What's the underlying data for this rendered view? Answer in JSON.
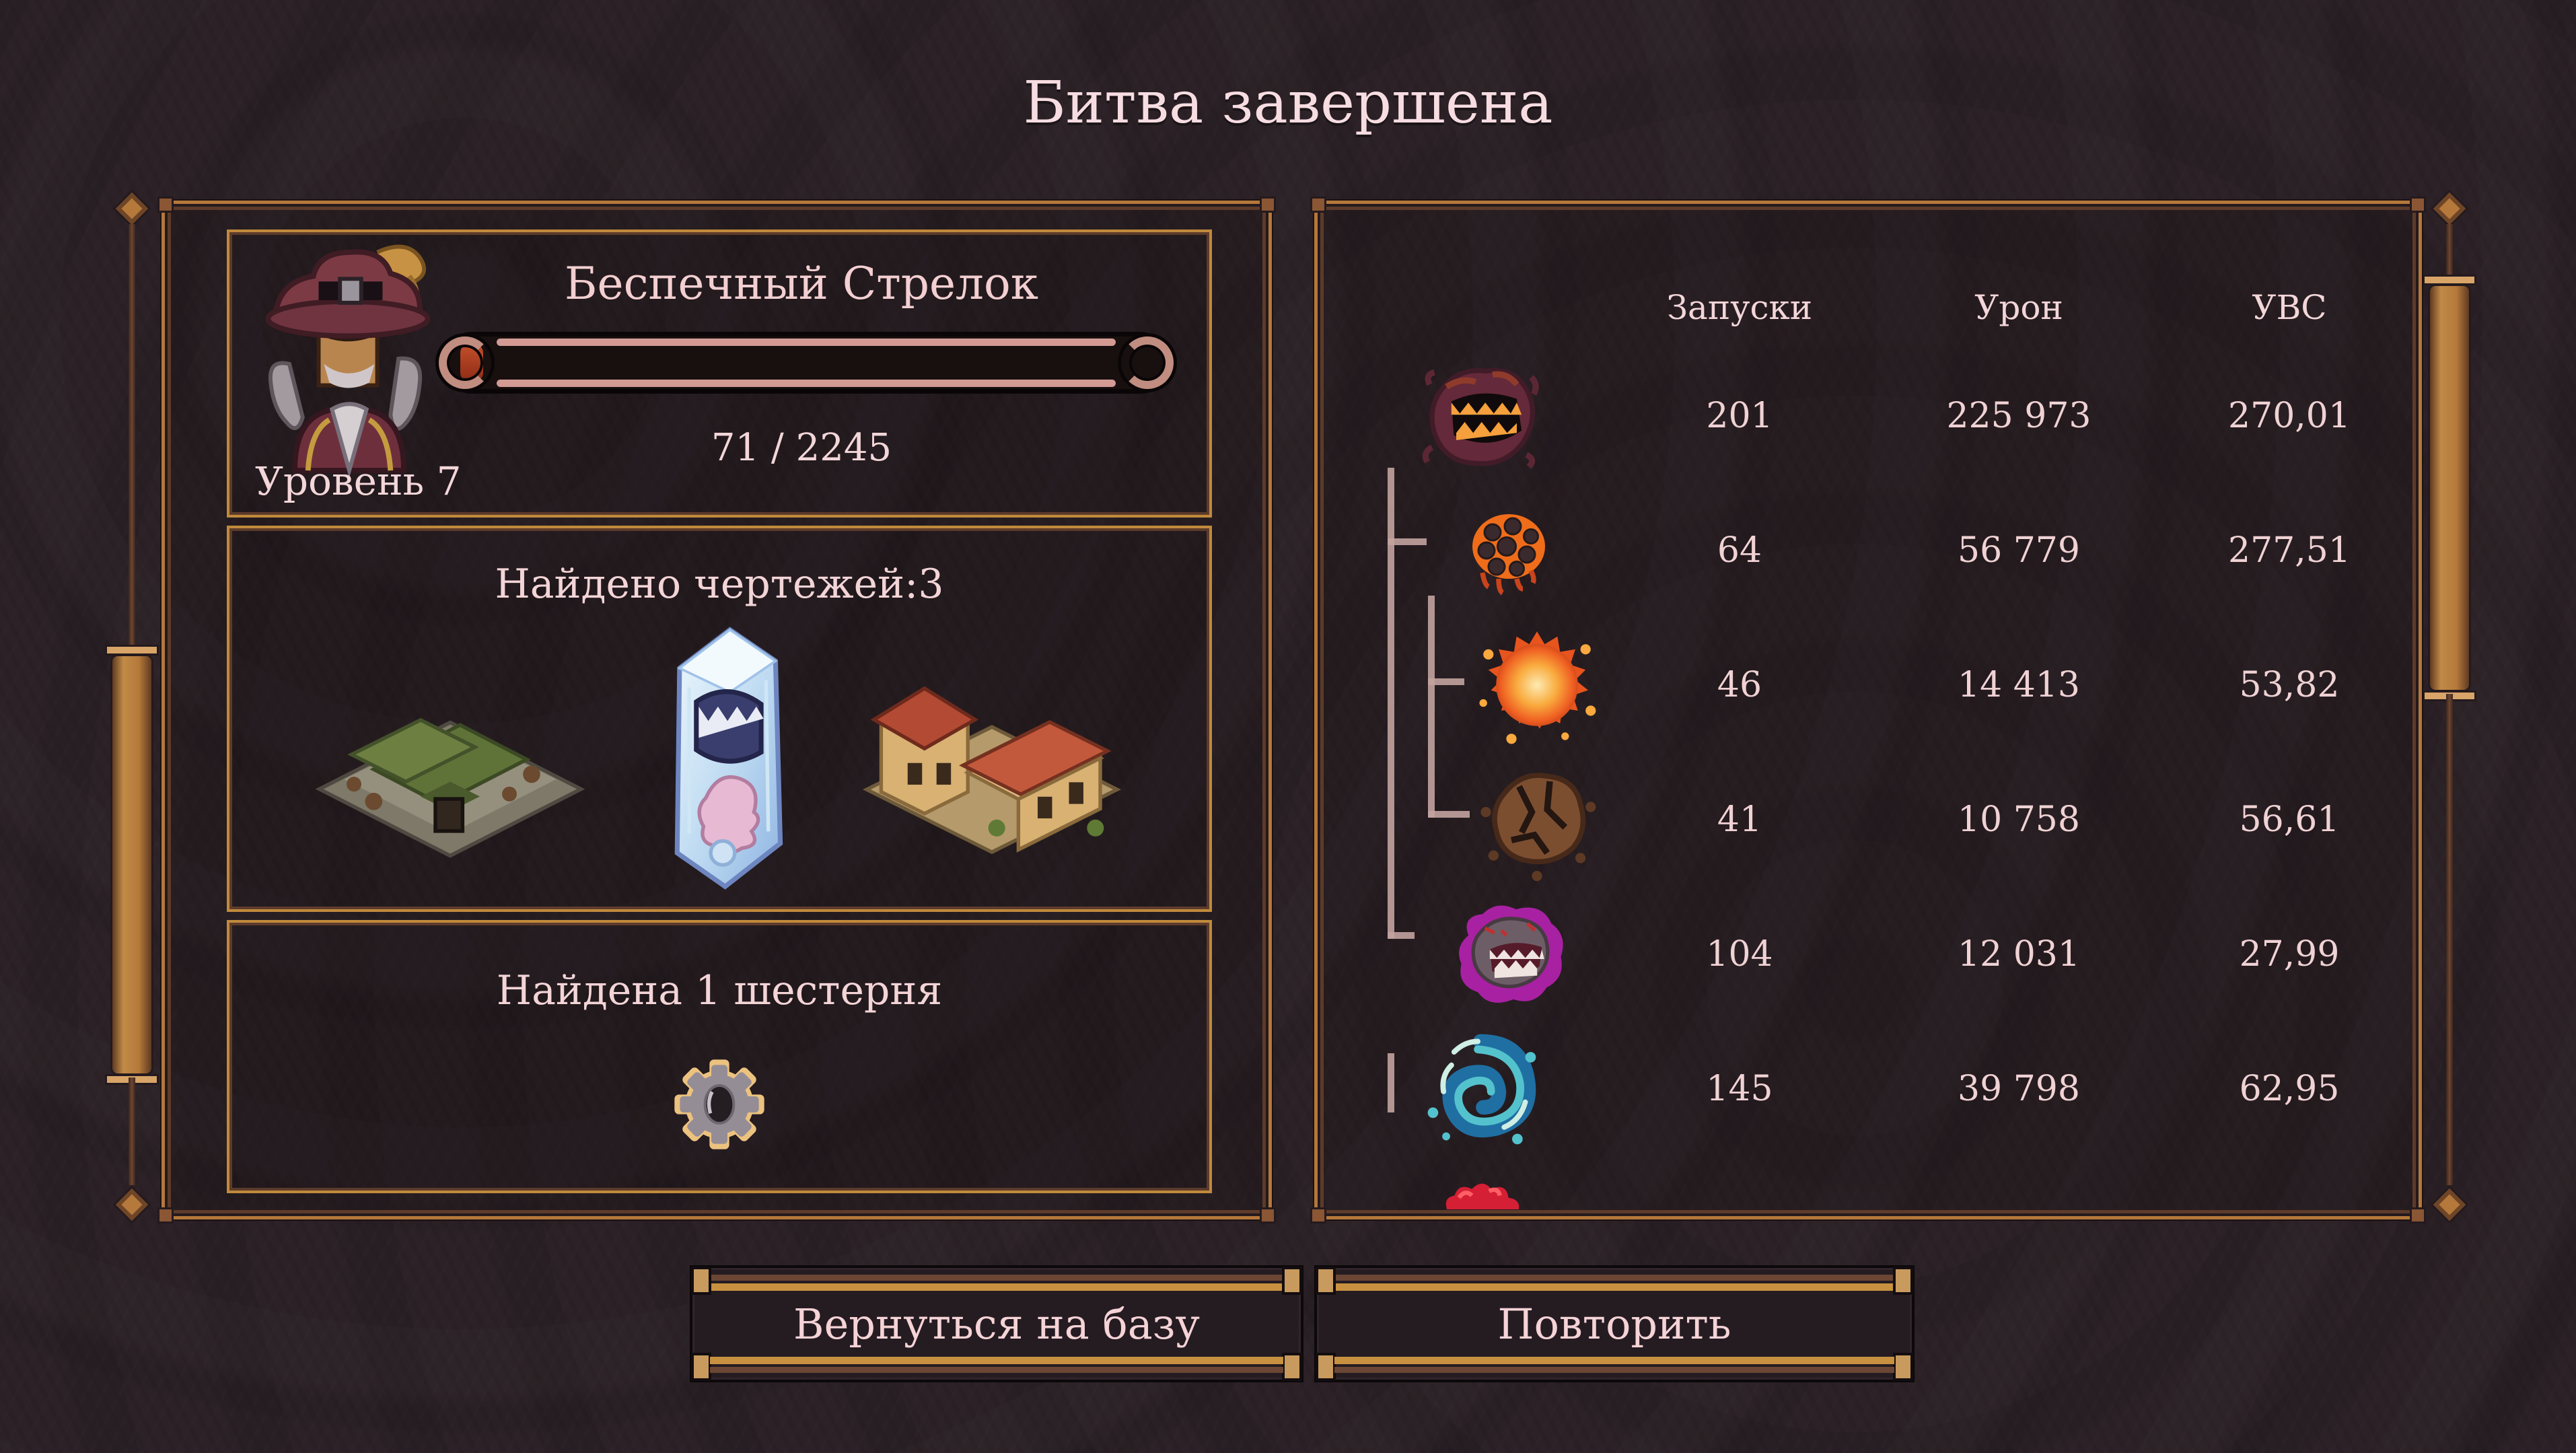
{
  "title": "Битва завершена",
  "player": {
    "name": "Беспечный Стрелок",
    "level_label": "Уровень 7",
    "xp_text": "71 / 2245",
    "xp_current": 71,
    "xp_max": 2245,
    "xp_fill_pct": 3.2,
    "portrait": "musketeer-portrait"
  },
  "blueprints": {
    "title": "Найдено чертежей:3",
    "items": [
      {
        "icon": "green-roof-cross-building"
      },
      {
        "icon": "ice-crystal-tower"
      },
      {
        "icon": "red-roof-compound"
      }
    ]
  },
  "gear": {
    "title": "Найдена 1 шестерня",
    "icon": "gear-icon"
  },
  "stats": {
    "columns": [
      "Запуски",
      "Урон",
      "УВС"
    ],
    "rows": [
      {
        "enemy": "demon-maw",
        "depth": 0,
        "launches": "201",
        "damage": "225 973",
        "uvs": "270,01"
      },
      {
        "enemy": "lava-golem",
        "depth": 1,
        "launches": "64",
        "damage": "56 779",
        "uvs": "277,51"
      },
      {
        "enemy": "fireball",
        "depth": 2,
        "launches": "46",
        "damage": "14 413",
        "uvs": "53,82"
      },
      {
        "enemy": "rock-clump",
        "depth": 2,
        "launches": "41",
        "damage": "10 758",
        "uvs": "56,61"
      },
      {
        "enemy": "void-maw",
        "depth": 1,
        "launches": "104",
        "damage": "12 031",
        "uvs": "27,99"
      },
      {
        "enemy": "water-vortex",
        "depth": 0,
        "launches": "145",
        "damage": "39 798",
        "uvs": "62,95"
      },
      {
        "enemy": "blood-splat",
        "depth": 0,
        "launches": "",
        "damage": "",
        "uvs": ""
      }
    ]
  },
  "buttons": {
    "return_to_base": "Вернуться на базу",
    "retry": "Повторить"
  },
  "colors": {
    "background": "#2b2126",
    "frame_gold": "#b4783a",
    "frame_dark": "#5d3b2a",
    "text_pink": "#f2d6d9",
    "xp_fill_red": "#b23a1f",
    "hierarchy_line": "#c2a39e"
  }
}
